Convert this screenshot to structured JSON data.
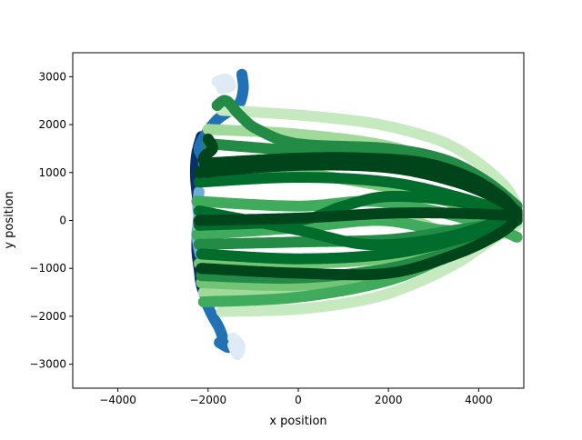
{
  "chart_data": {
    "type": "scatter",
    "title": "",
    "xlabel": "x position",
    "ylabel": "y position",
    "xlim": [
      -5000,
      5000
    ],
    "ylim": [
      -3500,
      3500
    ],
    "xticks": [
      -4000,
      -2000,
      0,
      2000,
      4000
    ],
    "yticks": [
      -3000,
      -2000,
      -1000,
      0,
      1000,
      2000,
      3000
    ],
    "xtick_labels": [
      "−4000",
      "−2000",
      "0",
      "2000",
      "4000"
    ],
    "ytick_labels": [
      "−3000",
      "−2000",
      "−1000",
      "0",
      "1000",
      "2000",
      "3000"
    ],
    "grid": false,
    "legend": "none",
    "series": [
      {
        "color": "#08306b",
        "points": [
          [
            -2150,
            1750
          ],
          [
            -2250,
            1400
          ],
          [
            -2280,
            1000
          ],
          [
            -2250,
            600
          ],
          [
            -2200,
            200
          ],
          [
            -2230,
            -200
          ],
          [
            -2250,
            -600
          ],
          [
            -2200,
            -1000
          ],
          [
            -2150,
            -1350
          ],
          [
            -2050,
            -1600
          ]
        ]
      },
      {
        "color": "#2171b5",
        "points": [
          [
            -1250,
            3050
          ],
          [
            -1220,
            2750
          ],
          [
            -1300,
            2450
          ],
          [
            -1500,
            2300
          ],
          [
            -1800,
            2100
          ],
          [
            -2050,
            1800
          ],
          [
            -2200,
            1500
          ],
          [
            -2100,
            1300
          ]
        ]
      },
      {
        "color": "#2171b5",
        "points": [
          [
            -2050,
            -1700
          ],
          [
            -1900,
            -2000
          ],
          [
            -1750,
            -2250
          ],
          [
            -1650,
            -2500
          ],
          [
            -1550,
            -2650
          ],
          [
            -1750,
            -2550
          ]
        ]
      },
      {
        "color": "#6baed6",
        "points": [
          [
            -2200,
            600
          ],
          [
            -2230,
            300
          ],
          [
            -2200,
            0
          ],
          [
            -2250,
            -300
          ],
          [
            -2180,
            -700
          ]
        ]
      },
      {
        "color": "#deebf7",
        "points": [
          [
            -1800,
            2900
          ],
          [
            -1600,
            2950
          ],
          [
            -1500,
            2800
          ],
          [
            -1700,
            2750
          ]
        ]
      },
      {
        "color": "#deebf7",
        "points": [
          [
            -1450,
            -2600
          ],
          [
            -1350,
            -2800
          ],
          [
            -1300,
            -2600
          ],
          [
            -1450,
            -2450
          ]
        ]
      },
      {
        "color": "#c7e9c0",
        "points": [
          [
            -1700,
            2300
          ],
          [
            0,
            2200
          ],
          [
            1500,
            2050
          ],
          [
            2500,
            1850
          ],
          [
            3300,
            1600
          ],
          [
            4000,
            1200
          ],
          [
            4600,
            700
          ],
          [
            4850,
            300
          ]
        ]
      },
      {
        "color": "#c7e9c0",
        "points": [
          [
            -1700,
            -1900
          ],
          [
            0,
            -1850
          ],
          [
            1500,
            -1650
          ],
          [
            2500,
            -1350
          ],
          [
            3500,
            -900
          ],
          [
            4300,
            -400
          ],
          [
            4850,
            -100
          ]
        ]
      },
      {
        "color": "#a1d99b",
        "points": [
          [
            -2000,
            1900
          ],
          [
            0,
            1800
          ],
          [
            2000,
            1550
          ],
          [
            3300,
            1100
          ],
          [
            4200,
            600
          ],
          [
            4800,
            200
          ]
        ]
      },
      {
        "color": "#a1d99b",
        "points": [
          [
            -2100,
            -1500
          ],
          [
            0,
            -1500
          ],
          [
            1800,
            -1300
          ],
          [
            3200,
            -800
          ],
          [
            4300,
            -200
          ],
          [
            4850,
            100
          ]
        ]
      },
      {
        "color": "#a1d99b",
        "points": [
          [
            -2200,
            -200
          ],
          [
            0,
            -50
          ],
          [
            1500,
            100
          ],
          [
            2500,
            0
          ],
          [
            3500,
            -300
          ],
          [
            4500,
            -150
          ],
          [
            4850,
            50
          ]
        ]
      },
      {
        "color": "#74c476",
        "points": [
          [
            -2100,
            1200
          ],
          [
            0,
            1000
          ],
          [
            2000,
            700
          ],
          [
            3300,
            400
          ],
          [
            4200,
            150
          ],
          [
            4850,
            0
          ]
        ]
      },
      {
        "color": "#74c476",
        "points": [
          [
            -2200,
            -900
          ],
          [
            0,
            -900
          ],
          [
            1800,
            -800
          ],
          [
            3200,
            -500
          ],
          [
            4300,
            -100
          ],
          [
            4850,
            100
          ]
        ]
      },
      {
        "color": "#74c476",
        "points": [
          [
            -2150,
            -1300
          ],
          [
            0,
            -1350
          ],
          [
            2000,
            -1150
          ],
          [
            3500,
            -650
          ],
          [
            4500,
            -150
          ],
          [
            4850,
            100
          ]
        ]
      },
      {
        "color": "#41ab5d",
        "points": [
          [
            -2250,
            400
          ],
          [
            0,
            300
          ],
          [
            1600,
            400
          ],
          [
            3000,
            200
          ],
          [
            4200,
            -100
          ],
          [
            4850,
            -350
          ]
        ]
      },
      {
        "color": "#41ab5d",
        "points": [
          [
            -2100,
            -1700
          ],
          [
            0,
            -1600
          ],
          [
            2000,
            -1250
          ],
          [
            3500,
            -650
          ],
          [
            4500,
            -100
          ],
          [
            4850,
            200
          ]
        ]
      },
      {
        "color": "#41ab5d",
        "points": [
          [
            -2250,
            -300
          ],
          [
            0,
            -150
          ],
          [
            1800,
            0
          ],
          [
            3200,
            -200
          ],
          [
            4400,
            -200
          ],
          [
            4850,
            0
          ]
        ]
      },
      {
        "color": "#238b45",
        "points": [
          [
            -1800,
            2400
          ],
          [
            -1600,
            2500
          ],
          [
            -1300,
            2200
          ],
          [
            -900,
            1900
          ],
          [
            0,
            1600
          ],
          [
            2000,
            1500
          ],
          [
            3300,
            1250
          ],
          [
            4200,
            800
          ],
          [
            4850,
            300
          ]
        ]
      },
      {
        "color": "#238b45",
        "points": [
          [
            -2000,
            1600
          ],
          [
            0,
            1450
          ],
          [
            2000,
            1300
          ],
          [
            3500,
            900
          ],
          [
            4600,
            300
          ]
        ]
      },
      {
        "color": "#238b45",
        "points": [
          [
            -2200,
            -500
          ],
          [
            0,
            -450
          ],
          [
            2000,
            -400
          ],
          [
            3500,
            -200
          ],
          [
            4850,
            0
          ]
        ]
      },
      {
        "color": "#238b45",
        "points": [
          [
            -2150,
            -1150
          ],
          [
            0,
            -1200
          ],
          [
            2000,
            -1000
          ],
          [
            3500,
            -600
          ],
          [
            4600,
            -100
          ],
          [
            4850,
            150
          ]
        ]
      },
      {
        "color": "#006d2c",
        "points": [
          [
            -2200,
            800
          ],
          [
            0,
            900
          ],
          [
            2000,
            800
          ],
          [
            3500,
            500
          ],
          [
            4500,
            200
          ],
          [
            4850,
            50
          ]
        ]
      },
      {
        "color": "#006d2c",
        "points": [
          [
            -2200,
            -100
          ],
          [
            0,
            0
          ],
          [
            1000,
            300
          ],
          [
            2000,
            500
          ],
          [
            3500,
            400
          ],
          [
            4850,
            100
          ]
        ]
      },
      {
        "color": "#006d2c",
        "points": [
          [
            -2150,
            -700
          ],
          [
            0,
            -800
          ],
          [
            2000,
            -700
          ],
          [
            3500,
            -400
          ],
          [
            4850,
            0
          ]
        ]
      },
      {
        "color": "#006d2c",
        "points": [
          [
            -2200,
            200
          ],
          [
            0,
            -200
          ],
          [
            1500,
            -500
          ],
          [
            3000,
            -400
          ],
          [
            4200,
            -100
          ],
          [
            4850,
            200
          ]
        ]
      },
      {
        "color": "#00441b",
        "points": [
          [
            -2000,
            1200
          ],
          [
            0,
            1300
          ],
          [
            1500,
            1300
          ],
          [
            2800,
            1200
          ],
          [
            3800,
            900
          ],
          [
            4500,
            500
          ],
          [
            4850,
            150
          ]
        ]
      },
      {
        "color": "#00441b",
        "points": [
          [
            -2000,
            1700
          ],
          [
            -1900,
            1500
          ],
          [
            -2100,
            1300
          ],
          [
            -2000,
            1000
          ]
        ]
      },
      {
        "color": "#00441b",
        "points": [
          [
            -2200,
            1000
          ],
          [
            0,
            1150
          ],
          [
            2000,
            1100
          ],
          [
            3500,
            800
          ],
          [
            4500,
            400
          ],
          [
            4850,
            100
          ]
        ]
      },
      {
        "color": "#00441b",
        "points": [
          [
            -2150,
            -1000
          ],
          [
            0,
            -1100
          ],
          [
            2000,
            -1100
          ],
          [
            3500,
            -700
          ],
          [
            4500,
            -250
          ],
          [
            4850,
            50
          ]
        ]
      },
      {
        "color": "#00441b",
        "points": [
          [
            -2200,
            0
          ],
          [
            0,
            50
          ],
          [
            2000,
            150
          ],
          [
            3500,
            150
          ],
          [
            4850,
            100
          ]
        ]
      }
    ]
  }
}
